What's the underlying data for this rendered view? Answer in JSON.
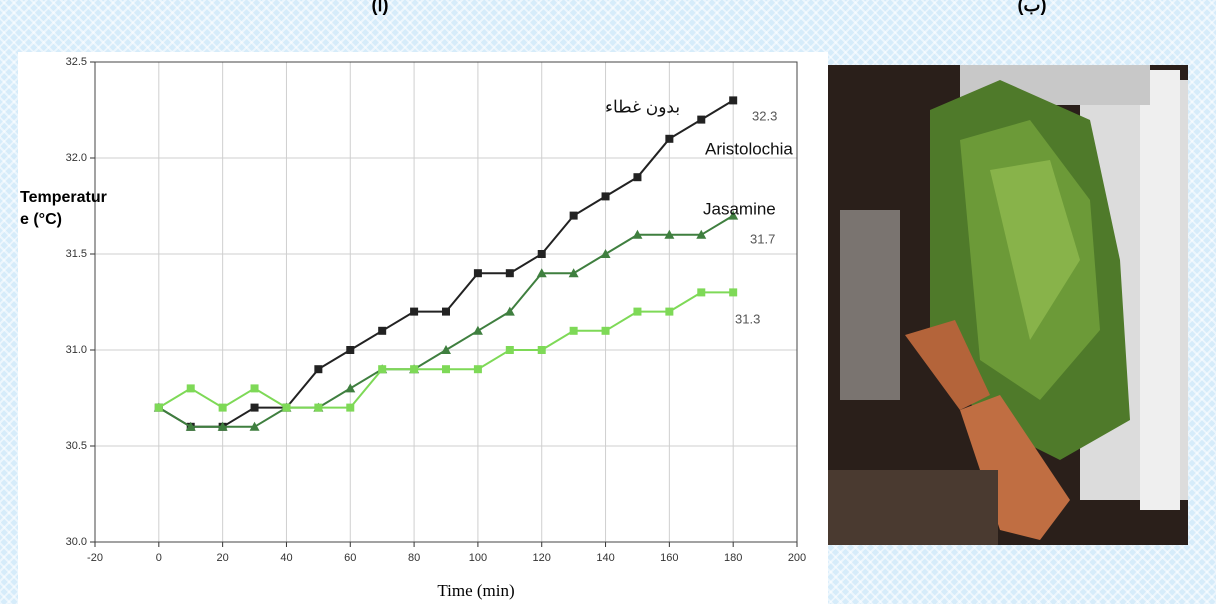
{
  "panel_labels": [
    "(أ)",
    "(ب)"
  ],
  "chart_data": {
    "type": "line",
    "x_label": "Time (min)",
    "y_label": [
      "Temperatur",
      "e (°C)"
    ],
    "x": [
      0,
      10,
      20,
      30,
      40,
      50,
      60,
      70,
      80,
      90,
      100,
      110,
      120,
      130,
      140,
      150,
      160,
      170,
      180
    ],
    "series": [
      {
        "name": "بدون غطاء",
        "color": "#222222",
        "marker": "square",
        "values": [
          30.7,
          30.6,
          30.6,
          30.7,
          30.7,
          30.9,
          31.0,
          31.1,
          31.2,
          31.2,
          31.4,
          31.4,
          31.5,
          31.7,
          31.8,
          31.9,
          32.1,
          32.2,
          32.3
        ]
      },
      {
        "name": "Aristolochia",
        "color": "#3f7f3f",
        "marker": "triangle",
        "values": [
          30.7,
          30.6,
          30.6,
          30.6,
          30.7,
          30.7,
          30.8,
          30.9,
          30.9,
          31.0,
          31.1,
          31.2,
          31.4,
          31.4,
          31.5,
          31.6,
          31.6,
          31.6,
          31.7
        ]
      },
      {
        "name": "Jasamine",
        "color": "#7ed957",
        "marker": "square",
        "values": [
          30.7,
          30.8,
          30.7,
          30.8,
          30.7,
          30.7,
          30.7,
          30.9,
          30.9,
          30.9,
          30.9,
          31.0,
          31.0,
          31.1,
          31.1,
          31.2,
          31.2,
          31.3,
          31.3
        ]
      }
    ],
    "xlim": [
      -20,
      200
    ],
    "xticks": [
      -20,
      0,
      20,
      40,
      60,
      80,
      100,
      120,
      140,
      160,
      180,
      200
    ],
    "ylim": [
      30.0,
      32.5
    ],
    "yticks": [
      {
        "value": 30.0,
        "label": "30.0"
      },
      {
        "value": 30.5,
        "label": "30.5"
      },
      {
        "value": 31.0,
        "label": "31.0"
      },
      {
        "value": 31.5,
        "label": "31.5"
      },
      {
        "value": 32.0,
        "label": "32.0"
      },
      {
        "value": 32.5,
        "label": "32.5"
      }
    ],
    "grid": true
  }
}
